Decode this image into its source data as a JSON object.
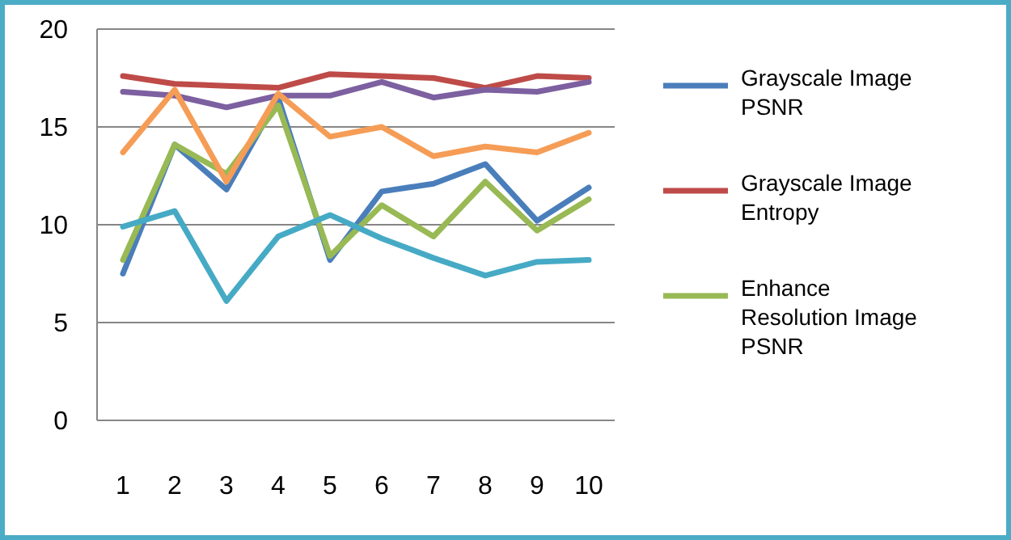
{
  "chart_data": {
    "type": "line",
    "categories": [
      "1",
      "2",
      "3",
      "4",
      "5",
      "6",
      "7",
      "8",
      "9",
      "10"
    ],
    "series": [
      {
        "name": "Grayscale Image PSNR",
        "color": "#4a7ebb",
        "values": [
          7.5,
          14.1,
          11.8,
          16.5,
          8.2,
          11.7,
          12.1,
          13.1,
          10.2,
          11.9
        ]
      },
      {
        "name": "Grayscale Image Entropy",
        "color": "#be4b48",
        "values": [
          17.6,
          17.2,
          17.1,
          17.0,
          17.7,
          17.6,
          17.5,
          17.0,
          17.6,
          17.5
        ]
      },
      {
        "name": "Enhance Resolution Image PSNR",
        "color": "#98b954",
        "values": [
          8.2,
          14.1,
          12.6,
          16.1,
          8.4,
          11.0,
          9.4,
          12.2,
          9.7,
          11.3
        ]
      },
      {
        "color": "#7d60a0",
        "values": [
          16.8,
          16.6,
          16.0,
          16.6,
          16.6,
          17.3,
          16.5,
          16.9,
          16.8,
          17.3
        ]
      },
      {
        "color": "#f59d56",
        "values": [
          13.7,
          16.9,
          12.2,
          16.7,
          14.5,
          15.0,
          13.5,
          14.0,
          13.7,
          14.7
        ]
      },
      {
        "color": "#46aac5",
        "values": [
          9.9,
          10.7,
          6.1,
          9.4,
          10.5,
          9.3,
          8.3,
          7.4,
          8.1,
          8.2
        ]
      }
    ],
    "ylim": [
      0,
      20
    ],
    "yticks": [
      0,
      5,
      10,
      15,
      20
    ],
    "grid": "y",
    "legend": "right",
    "marker": "none",
    "line_style": "solid"
  }
}
